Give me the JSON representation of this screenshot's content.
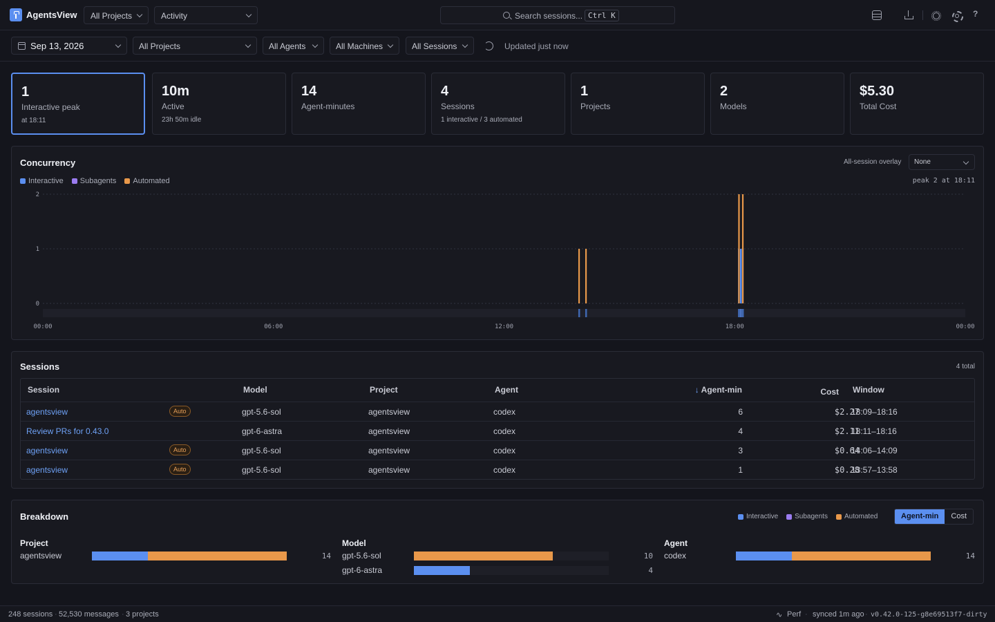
{
  "header": {
    "brand": "AgentsView",
    "project_select": "All Projects",
    "view_select": "Activity",
    "search_placeholder": "Search sessions...",
    "search_shortcut": "Ctrl K",
    "help_label": "?"
  },
  "filters": {
    "date": "Sep 13, 2026",
    "project": "All Projects",
    "agents": "All Agents",
    "machines": "All Machines",
    "sessions": "All Sessions",
    "updated": "Updated just now"
  },
  "stats": [
    {
      "value": "1",
      "label": "Interactive peak",
      "sub": "at 18:11"
    },
    {
      "value": "10m",
      "label": "Active",
      "sub": "23h 50m idle"
    },
    {
      "value": "14",
      "label": "Agent-minutes",
      "sub": ""
    },
    {
      "value": "4",
      "label": "Sessions",
      "sub": "1 interactive / 3 automated"
    },
    {
      "value": "1",
      "label": "Projects",
      "sub": ""
    },
    {
      "value": "2",
      "label": "Models",
      "sub": ""
    },
    {
      "value": "$5.30",
      "label": "Total Cost",
      "sub": ""
    }
  ],
  "colors": {
    "interactive": "#5b8ff0",
    "subagents": "#9b7cf0",
    "automated": "#e8984a",
    "accent": "#5b8ff0"
  },
  "concurrency": {
    "title": "Concurrency",
    "overlay_label": "All-session overlay",
    "overlay_value": "None",
    "peak": "peak 2 at 18:11",
    "legend": [
      "Interactive",
      "Subagents",
      "Automated"
    ]
  },
  "chart_data": {
    "type": "bar",
    "title": "Concurrency",
    "x_domain_hours": [
      0,
      24
    ],
    "x_ticks": [
      "00:00",
      "06:00",
      "12:00",
      "18:00",
      "00:00"
    ],
    "y_ticks": [
      "0",
      "1",
      "2"
    ],
    "ylim": [
      0,
      2
    ],
    "series": [
      {
        "name": "Interactive",
        "points": [
          {
            "t": 18.11,
            "v": 1
          },
          {
            "t": 18.16,
            "v": 1
          },
          {
            "t": 18.21,
            "v": 1
          }
        ]
      },
      {
        "name": "Automated",
        "points": [
          {
            "t": 13.95,
            "v": 1
          },
          {
            "t": 14.13,
            "v": 1
          },
          {
            "t": 18.11,
            "v": 2
          },
          {
            "t": 18.21,
            "v": 2
          }
        ]
      }
    ]
  },
  "sessions": {
    "title": "Sessions",
    "total": "4 total",
    "columns": {
      "session": "Session",
      "model": "Model",
      "project": "Project",
      "agent": "Agent",
      "agent_min": "Agent-min",
      "cost": "Cost",
      "window": "Window"
    },
    "rows": [
      {
        "session": "agentsview",
        "badge": "Auto",
        "model": "gpt-5.6-sol",
        "project": "agentsview",
        "agent": "codex",
        "agent_min": "6",
        "cost": "$2.27",
        "window": "18:09–18:16"
      },
      {
        "session": "Review PRs for 0.43.0",
        "badge": "",
        "model": "gpt-6-astra",
        "project": "agentsview",
        "agent": "codex",
        "agent_min": "4",
        "cost": "$2.11",
        "window": "18:11–18:16"
      },
      {
        "session": "agentsview",
        "badge": "Auto",
        "model": "gpt-5.6-sol",
        "project": "agentsview",
        "agent": "codex",
        "agent_min": "3",
        "cost": "$0.64",
        "window": "14:06–14:09"
      },
      {
        "session": "agentsview",
        "badge": "Auto",
        "model": "gpt-5.6-sol",
        "project": "agentsview",
        "agent": "codex",
        "agent_min": "1",
        "cost": "$0.28",
        "window": "13:57–13:58"
      }
    ]
  },
  "breakdown": {
    "title": "Breakdown",
    "legend": [
      "Interactive",
      "Subagents",
      "Automated"
    ],
    "toggle": [
      "Agent-min",
      "Cost"
    ],
    "max": 14,
    "groups": [
      {
        "heading": "Project",
        "items": [
          {
            "label": "agentsview",
            "interactive": 4,
            "automated": 10,
            "total": "14"
          }
        ]
      },
      {
        "heading": "Model",
        "items": [
          {
            "label": "gpt-5.6-sol",
            "interactive": 0,
            "automated": 10,
            "total": "10"
          },
          {
            "label": "gpt-6-astra",
            "interactive": 4,
            "automated": 0,
            "total": "4"
          }
        ]
      },
      {
        "heading": "Agent",
        "items": [
          {
            "label": "codex",
            "interactive": 4,
            "automated": 10,
            "total": "14"
          }
        ]
      }
    ]
  },
  "footer": {
    "sessions": "248 sessions",
    "messages": "52,530 messages",
    "projects": "3 projects",
    "perf": "Perf",
    "synced": "synced 1m ago",
    "version": "v0.42.0-125-g8e69513f7-dirty"
  }
}
